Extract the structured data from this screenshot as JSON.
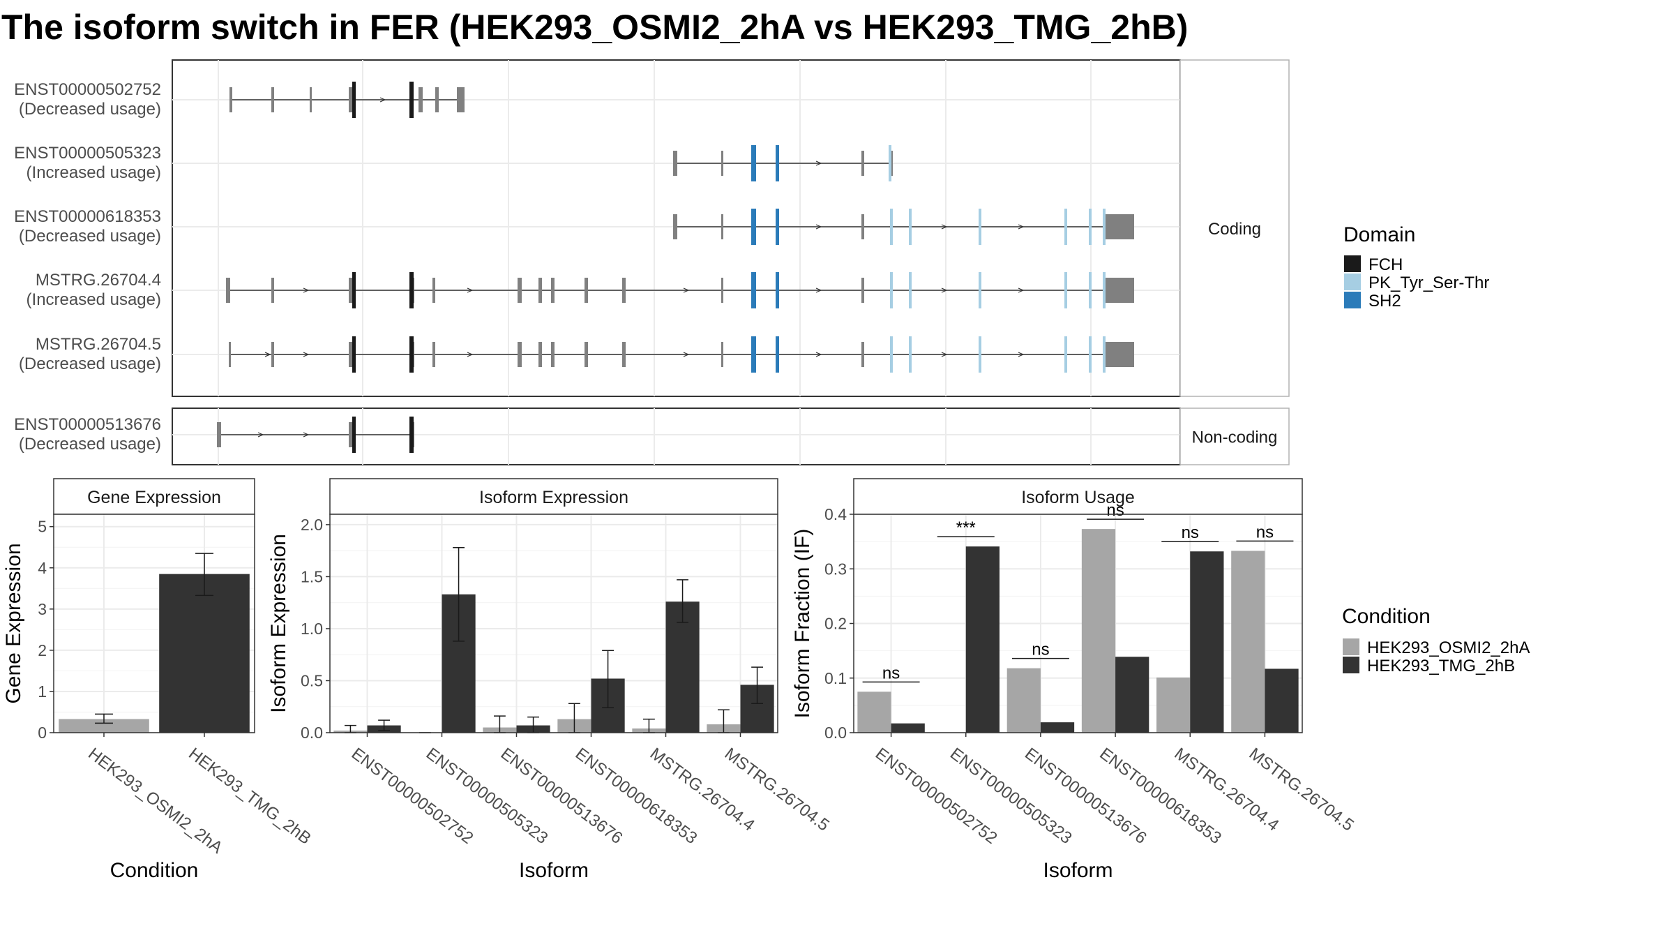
{
  "title": "The isoform switch in FER (HEK293_OSMI2_2hA vs HEK293_TMG_2hB)",
  "colors": {
    "FCH": "#1a1a1a",
    "PK_Tyr_Ser-Thr": "#a6cee3",
    "SH2": "#2b7bb9",
    "exon": "#808080",
    "condA": "#a6a6a6",
    "condB": "#333333"
  },
  "structure": {
    "sections": [
      {
        "label": "Coding",
        "isoforms": [
          {
            "id": "ENST00000502752",
            "change": "(Decreased usage)"
          },
          {
            "id": "ENST00000505323",
            "change": "(Increased usage)"
          },
          {
            "id": "ENST00000618353",
            "change": "(Decreased usage)"
          },
          {
            "id": "MSTRG.26704.4",
            "change": "(Increased usage)"
          },
          {
            "id": "MSTRG.26704.5",
            "change": "(Decreased usage)"
          }
        ]
      },
      {
        "label": "Non-coding",
        "isoforms": [
          {
            "id": "ENST00000513676",
            "change": "(Decreased usage)"
          }
        ]
      }
    ],
    "domain_legend": {
      "title": "Domain",
      "items": [
        "FCH",
        "PK_Tyr_Ser-Thr",
        "SH2"
      ]
    }
  },
  "condition_legend": {
    "title": "Condition",
    "items": [
      "HEK293_OSMI2_2hA",
      "HEK293_TMG_2hB"
    ]
  },
  "chart_data": [
    {
      "type": "bar",
      "title": "Gene Expression",
      "xlabel": "Condition",
      "ylabel": "Gene Expression",
      "ylim": [
        0,
        5.3
      ],
      "yticks": [
        0,
        1,
        2,
        3,
        4,
        5
      ],
      "categories": [
        "HEK293_OSMI2_2hA",
        "HEK293_TMG_2hB"
      ],
      "values": [
        0.33,
        3.85
      ],
      "errors": [
        [
          0.23,
          0.45
        ],
        [
          3.33,
          4.35
        ]
      ]
    },
    {
      "type": "bar",
      "title": "Isoform Expression",
      "xlabel": "Isoform",
      "ylabel": "Isoform Expression",
      "ylim": [
        0,
        2.1
      ],
      "yticks": [
        0.0,
        0.5,
        1.0,
        1.5,
        2.0
      ],
      "categories": [
        "ENST00000502752",
        "ENST00000505323",
        "ENST00000513676",
        "ENST00000618353",
        "MSTRG.26704.4",
        "MSTRG.26704.5"
      ],
      "series": [
        {
          "name": "HEK293_OSMI2_2hA",
          "values": [
            0.02,
            0.0,
            0.05,
            0.13,
            0.04,
            0.08
          ],
          "errors": [
            [
              0.0,
              0.07
            ],
            [
              0.0,
              0.0
            ],
            [
              0.0,
              0.16
            ],
            [
              0.0,
              0.28
            ],
            [
              0.0,
              0.13
            ],
            [
              0.0,
              0.22
            ]
          ]
        },
        {
          "name": "HEK293_TMG_2hB",
          "values": [
            0.07,
            1.33,
            0.07,
            0.52,
            1.26,
            0.46
          ],
          "errors": [
            [
              0.02,
              0.12
            ],
            [
              0.88,
              1.78
            ],
            [
              0.0,
              0.15
            ],
            [
              0.24,
              0.79
            ],
            [
              1.06,
              1.47
            ],
            [
              0.28,
              0.63
            ]
          ]
        }
      ]
    },
    {
      "type": "bar",
      "title": "Isoform Usage",
      "xlabel": "Isoform",
      "ylabel": "Isoform Fraction (IF)",
      "ylim": [
        0,
        0.4
      ],
      "yticks": [
        0.0,
        0.1,
        0.2,
        0.3,
        0.4
      ],
      "categories": [
        "ENST00000502752",
        "ENST00000505323",
        "ENST00000513676",
        "ENST00000618353",
        "MSTRG.26704.4",
        "MSTRG.26704.5"
      ],
      "series": [
        {
          "name": "HEK293_OSMI2_2hA",
          "values": [
            0.075,
            0.0,
            0.118,
            0.373,
            0.101,
            0.333
          ]
        },
        {
          "name": "HEK293_TMG_2hB",
          "values": [
            0.017,
            0.341,
            0.019,
            0.139,
            0.332,
            0.117
          ]
        }
      ],
      "significance": [
        "ns",
        "***",
        "ns",
        "ns",
        "ns",
        "ns"
      ]
    }
  ]
}
